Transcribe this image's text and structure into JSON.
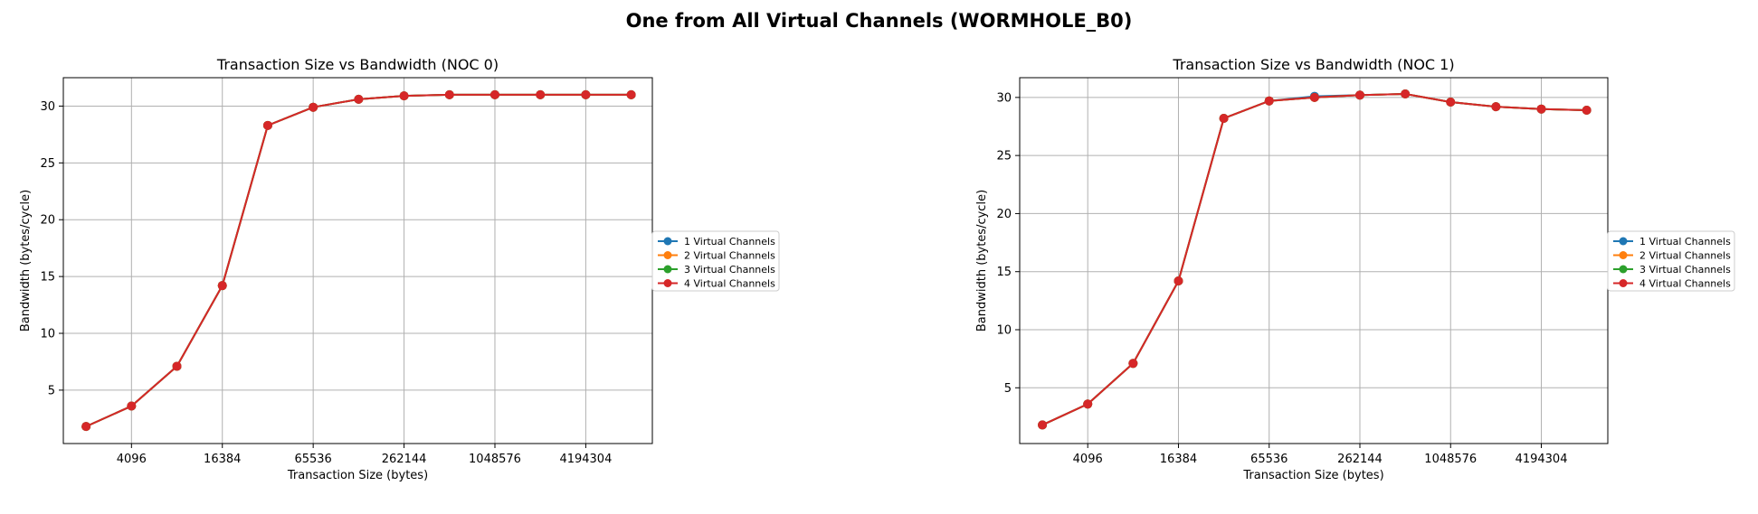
{
  "figure": {
    "suptitle": "One from All Virtual Channels (WORMHOLE_B0)"
  },
  "colors": {
    "series": [
      "#1f77b4",
      "#ff7f0e",
      "#2ca02c",
      "#d62728"
    ],
    "grid": "#b0b0b0"
  },
  "chart_data": [
    {
      "type": "line",
      "title": "Transaction Size vs Bandwidth (NOC 0)",
      "xlabel": "Transaction Size (bytes)",
      "ylabel": "Bandwidth (bytes/cycle)",
      "xscale": "log2",
      "xlim": [
        1448,
        11585000
      ],
      "ylim": [
        0.3,
        32.5
      ],
      "xticks": [
        4096,
        16384,
        65536,
        262144,
        1048576,
        4194304
      ],
      "xtick_labels": [
        "4096",
        "16384",
        "65536",
        "262144",
        "1048576",
        "4194304"
      ],
      "yticks": [
        5,
        10,
        15,
        20,
        25,
        30
      ],
      "ytick_labels": [
        "5",
        "10",
        "15",
        "20",
        "25",
        "30"
      ],
      "grid": true,
      "legend": "outside-right",
      "x": [
        2048,
        4096,
        8192,
        16384,
        32768,
        65536,
        131072,
        262144,
        524288,
        1048576,
        2097152,
        4194304,
        8388608
      ],
      "series": [
        {
          "name": "1 Virtual Channels",
          "values": [
            1.8,
            3.6,
            7.1,
            14.2,
            28.3,
            29.9,
            30.6,
            30.9,
            31.0,
            31.0,
            31.0,
            31.0,
            31.0
          ]
        },
        {
          "name": "2 Virtual Channels",
          "values": [
            1.8,
            3.6,
            7.1,
            14.2,
            28.3,
            29.9,
            30.6,
            30.9,
            31.0,
            31.0,
            31.0,
            31.0,
            31.0
          ]
        },
        {
          "name": "3 Virtual Channels",
          "values": [
            1.8,
            3.6,
            7.1,
            14.2,
            28.3,
            29.9,
            30.6,
            30.9,
            31.0,
            31.0,
            31.0,
            31.0,
            31.0
          ]
        },
        {
          "name": "4 Virtual Channels",
          "values": [
            1.8,
            3.6,
            7.1,
            14.2,
            28.3,
            29.9,
            30.6,
            30.9,
            31.0,
            31.0,
            31.0,
            31.0,
            31.0
          ]
        }
      ]
    },
    {
      "type": "line",
      "title": "Transaction Size vs Bandwidth (NOC 1)",
      "xlabel": "Transaction Size (bytes)",
      "ylabel": "Bandwidth (bytes/cycle)",
      "xscale": "log2",
      "xlim": [
        1448,
        11585000
      ],
      "ylim": [
        0.2,
        31.7
      ],
      "xticks": [
        4096,
        16384,
        65536,
        262144,
        1048576,
        4194304
      ],
      "xtick_labels": [
        "4096",
        "16384",
        "65536",
        "262144",
        "1048576",
        "4194304"
      ],
      "yticks": [
        5,
        10,
        15,
        20,
        25,
        30
      ],
      "ytick_labels": [
        "5",
        "10",
        "15",
        "20",
        "25",
        "30"
      ],
      "grid": true,
      "legend": "outside-right",
      "x": [
        2048,
        4096,
        8192,
        16384,
        32768,
        65536,
        131072,
        262144,
        524288,
        1048576,
        2097152,
        4194304,
        8388608
      ],
      "series": [
        {
          "name": "1 Virtual Channels",
          "values": [
            1.8,
            3.6,
            7.1,
            14.2,
            28.2,
            29.7,
            30.1,
            30.2,
            30.3,
            29.6,
            29.2,
            29.0,
            28.9
          ]
        },
        {
          "name": "2 Virtual Channels",
          "values": [
            1.8,
            3.6,
            7.1,
            14.2,
            28.2,
            29.7,
            30.0,
            30.2,
            30.3,
            29.6,
            29.2,
            29.0,
            28.9
          ]
        },
        {
          "name": "3 Virtual Channels",
          "values": [
            1.8,
            3.6,
            7.1,
            14.2,
            28.2,
            29.7,
            30.0,
            30.2,
            30.3,
            29.6,
            29.2,
            29.0,
            28.9
          ]
        },
        {
          "name": "4 Virtual Channels",
          "values": [
            1.8,
            3.6,
            7.1,
            14.2,
            28.2,
            29.7,
            30.0,
            30.2,
            30.3,
            29.6,
            29.2,
            29.0,
            28.9
          ]
        }
      ]
    }
  ]
}
